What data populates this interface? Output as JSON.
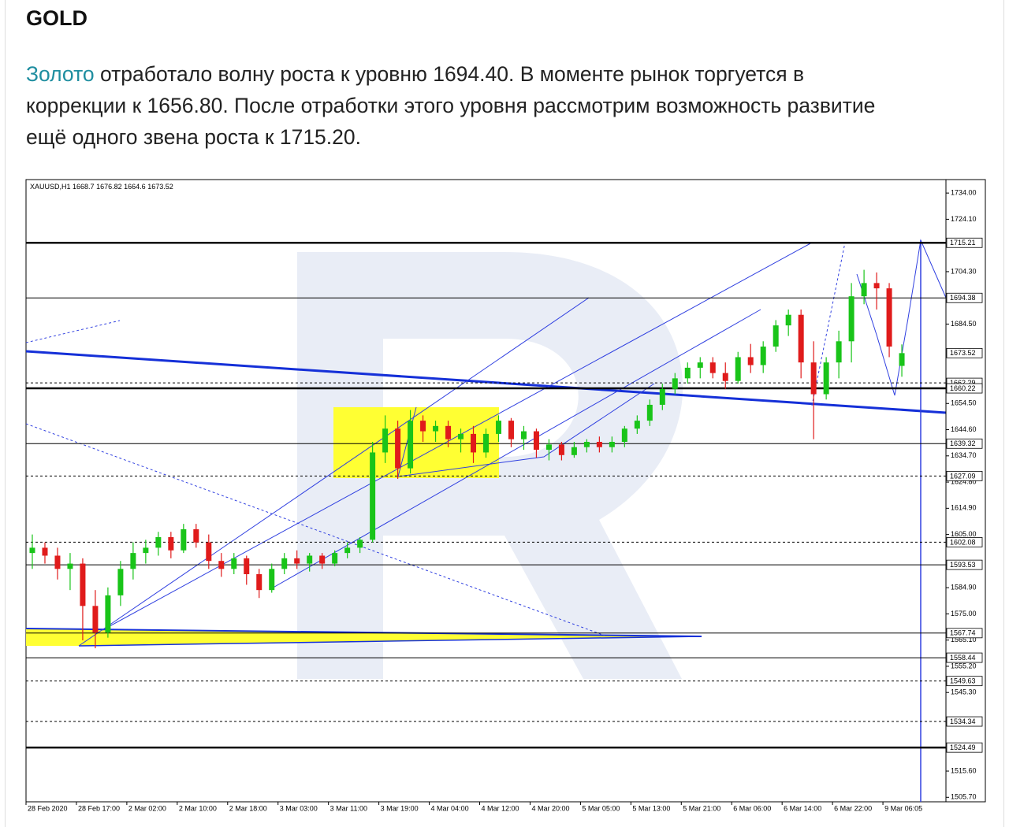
{
  "title": "GOLD",
  "paragraph": {
    "link": "Золото",
    "lines": [
      " отработало волну роста к уровню 1694.40. В моменте рынок торгуется в",
      "коррекции к 1656.80. После отработки этого уровня рассмотрим возможность развитие",
      "ещё одного звена роста к 1715.20."
    ]
  },
  "chart_data": {
    "type": "candlestick",
    "symbol": "XAUUSD,H1",
    "up_color": "#19c419",
    "down_color": "#e01b1b",
    "candles": {
      "open": [
        1598,
        1600,
        1597,
        1592,
        1594,
        1578,
        1568,
        1582,
        1592,
        1598,
        1600,
        1604,
        1599,
        1607,
        1602,
        1595,
        1592,
        1596,
        1590,
        1584,
        1592,
        1596,
        1594,
        1597,
        1594,
        1598,
        1600,
        1603,
        1636,
        1645,
        1630,
        1648,
        1644,
        1646,
        1641,
        1643,
        1636,
        1643,
        1648,
        1641,
        1644,
        1637,
        1639,
        1635,
        1638,
        1640,
        1638,
        1640,
        1645,
        1648,
        1654,
        1660,
        1664,
        1668,
        1670,
        1666,
        1663,
        1672,
        1669,
        1676,
        1684,
        1688,
        1670,
        1658,
        1670,
        1678,
        1695,
        1700,
        1698,
        1668.7
      ],
      "high": [
        1605,
        1602,
        1600,
        1598,
        1596,
        1584,
        1585,
        1595,
        1602,
        1603,
        1606,
        1606,
        1609,
        1609,
        1605,
        1598,
        1598,
        1597,
        1592,
        1594,
        1598,
        1599,
        1598,
        1598,
        1599,
        1602,
        1604,
        1640,
        1650,
        1648,
        1652,
        1650,
        1648,
        1648,
        1645,
        1646,
        1645,
        1650,
        1649,
        1646,
        1645,
        1641,
        1640,
        1640,
        1641,
        1642,
        1642,
        1646,
        1650,
        1656,
        1662,
        1666,
        1670,
        1672,
        1672,
        1670,
        1674,
        1677,
        1678,
        1686,
        1690,
        1690,
        1678,
        1672,
        1682,
        1700,
        1705,
        1704,
        1700,
        1676.82
      ],
      "low": [
        1592,
        1594,
        1588,
        1584,
        1565,
        1562,
        1566,
        1578,
        1588,
        1594,
        1597,
        1596,
        1598,
        1600,
        1592,
        1589,
        1590,
        1586,
        1581,
        1583,
        1590,
        1592,
        1591,
        1592,
        1593,
        1596,
        1598,
        1602,
        1632,
        1626,
        1628,
        1640,
        1640,
        1638,
        1636,
        1632,
        1634,
        1640,
        1638,
        1637,
        1634,
        1633,
        1633,
        1634,
        1636,
        1636,
        1636,
        1638,
        1643,
        1646,
        1652,
        1658,
        1662,
        1664,
        1664,
        1660,
        1662,
        1666,
        1666,
        1674,
        1680,
        1664,
        1641,
        1656,
        1664,
        1670,
        1692,
        1690,
        1672,
        1664.6
      ],
      "close": [
        1600,
        1597,
        1592,
        1594,
        1578,
        1568,
        1582,
        1592,
        1598,
        1600,
        1604,
        1599,
        1607,
        1602,
        1595,
        1592,
        1596,
        1590,
        1584,
        1592,
        1596,
        1594,
        1597,
        1594,
        1598,
        1600,
        1603,
        1636,
        1645,
        1630,
        1648,
        1644,
        1646,
        1641,
        1643,
        1636,
        1643,
        1648,
        1641,
        1644,
        1637,
        1639,
        1635,
        1638,
        1640,
        1638,
        1640,
        1645,
        1648,
        1654,
        1660,
        1664,
        1668,
        1670,
        1666,
        1663,
        1672,
        1669,
        1676,
        1684,
        1688,
        1670,
        1658,
        1670,
        1678,
        1695,
        1700,
        1698,
        1676,
        1673.52
      ]
    },
    "xlim": [
      0,
      73
    ],
    "xticks": [
      {
        "value": 0,
        "label": "28 Feb 2020"
      },
      {
        "value": 4,
        "label": "28 Feb 17:00"
      },
      {
        "value": 8,
        "label": "2 Mar 02:00"
      },
      {
        "value": 12,
        "label": "2 Mar 10:00"
      },
      {
        "value": 16,
        "label": "2 Mar 18:00"
      },
      {
        "value": 20,
        "label": "3 Mar 03:00"
      },
      {
        "value": 24,
        "label": "3 Mar 11:00"
      },
      {
        "value": 28,
        "label": "3 Mar 19:00"
      },
      {
        "value": 32,
        "label": "4 Mar 04:00"
      },
      {
        "value": 36,
        "label": "4 Mar 12:00"
      },
      {
        "value": 40,
        "label": "4 Mar 20:00"
      },
      {
        "value": 44,
        "label": "5 Mar 05:00"
      },
      {
        "value": 48,
        "label": "5 Mar 13:00"
      },
      {
        "value": 52,
        "label": "5 Mar 21:00"
      },
      {
        "value": 56,
        "label": "6 Mar 06:00"
      },
      {
        "value": 60,
        "label": "6 Mar 14:00"
      },
      {
        "value": 64,
        "label": "6 Mar 22:00"
      },
      {
        "value": 68,
        "label": "9 Mar 06:05"
      }
    ],
    "ylim": [
      1504,
      1738.5
    ],
    "yticks": [
      {
        "value": 1734.0,
        "label": "1734.00"
      },
      {
        "value": 1724.1,
        "label": "1724.10"
      },
      {
        "value": 1704.3,
        "label": "1704.30"
      },
      {
        "value": 1684.5,
        "label": "1684.50"
      },
      {
        "value": 1654.5,
        "label": "1654.50"
      },
      {
        "value": 1644.6,
        "label": "1644.60"
      },
      {
        "value": 1634.7,
        "label": "1634.70"
      },
      {
        "value": 1624.8,
        "label": "1624.80"
      },
      {
        "value": 1614.9,
        "label": "1614.90"
      },
      {
        "value": 1605.0,
        "label": "1605.00"
      },
      {
        "value": 1584.9,
        "label": "1584.90"
      },
      {
        "value": 1575.0,
        "label": "1575.00"
      },
      {
        "value": 1565.1,
        "label": "1565.10"
      },
      {
        "value": 1555.2,
        "label": "1555.20"
      },
      {
        "value": 1545.3,
        "label": "1545.30"
      },
      {
        "value": 1515.6,
        "label": "1515.60"
      },
      {
        "value": 1505.7,
        "label": "1505.70"
      }
    ],
    "levels": [
      1715.21,
      1694.38,
      1673.52,
      1662.29,
      1660.22,
      1639.32,
      1627.09,
      1602.08,
      1593.53,
      1567.74,
      1558.44,
      1549.63,
      1534.34,
      1524.49
    ],
    "level_styles": [
      "thick",
      "thin",
      "price",
      "dashed",
      "thick",
      "thin",
      "dashed",
      "dashed",
      "thin",
      "thin",
      "thin",
      "dashed",
      "dashed",
      "thick"
    ]
  }
}
